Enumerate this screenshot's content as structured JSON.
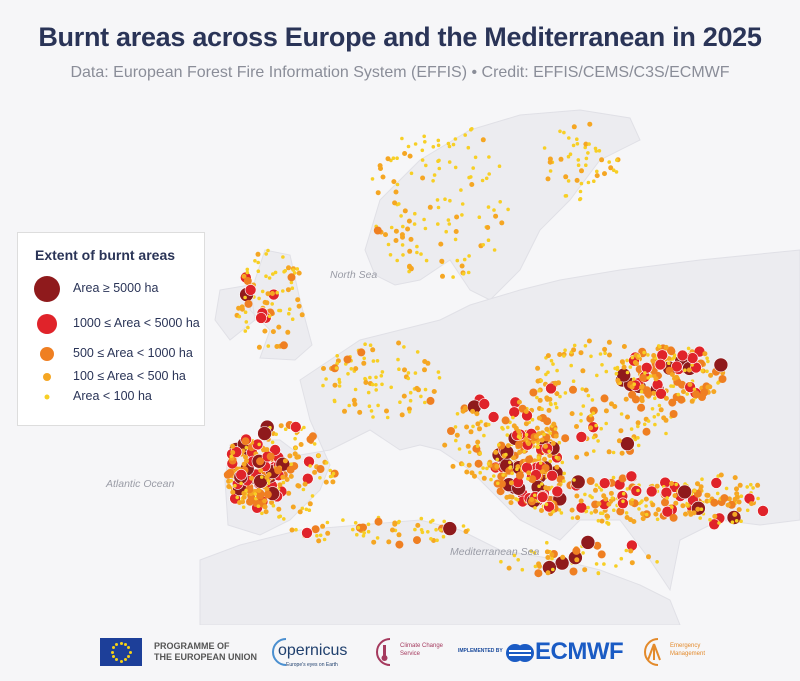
{
  "header": {
    "title": "Burnt areas across Europe and the Mediterranean in 2025",
    "subtitle": "Data: European Forest Fire Information System (EFFIS) • Credit: EFFIS/CEMS/C3S/ECMWF"
  },
  "map": {
    "sea_labels": [
      "North Sea",
      "Atlantic Ocean",
      "Mediterranean Sea"
    ],
    "colors": {
      "background": "#f6f6f8",
      "land": "#ececf0",
      "coast": "#dedee4"
    }
  },
  "legend": {
    "title": "Extent of burnt areas",
    "items": [
      {
        "label": "Area ≥ 5000 ha",
        "color": "#8f1a1c"
      },
      {
        "label": "1000 ≤ Area < 5000 ha",
        "color": "#e0232a"
      },
      {
        "label": "500 ≤ Area < 1000 ha",
        "color": "#ef7f22"
      },
      {
        "label": "100 ≤ Area < 500 ha",
        "color": "#f5a623"
      },
      {
        "label": "Area < 100 ha",
        "color": "#f7cf25"
      }
    ]
  },
  "footer": {
    "eu_programme": [
      "PROGRAMME OF",
      "THE EUROPEAN UNION"
    ],
    "copernicus": "opernicus",
    "copernicus_tagline": "Europe's eyes on Earth",
    "c3s": "Climate Change Service",
    "implemented_by": "IMPLEMENTED BY",
    "ecmwf": "ECMWF",
    "emergency": "Emergency Management"
  }
}
